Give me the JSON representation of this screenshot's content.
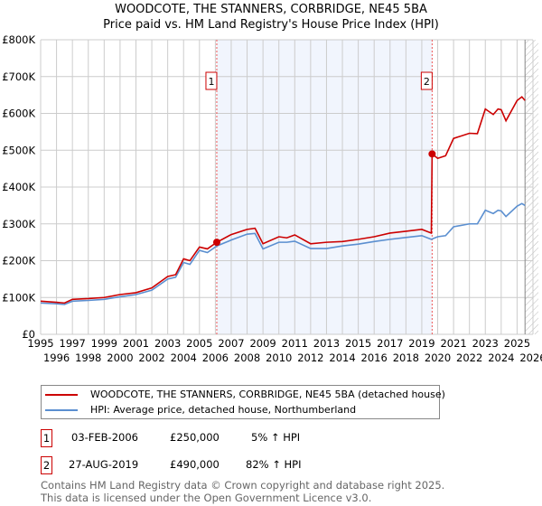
{
  "chart_data": {
    "type": "line",
    "title": "WOODCOTE, THE STANNERS, CORBRIDGE, NE45 5BA",
    "subtitle": "Price paid vs. HM Land Registry's House Price Index (HPI)",
    "xlim": [
      1995,
      2026
    ],
    "ylim": [
      0,
      800000
    ],
    "x_ticks": [
      "1995",
      "1996",
      "1997",
      "1998",
      "1999",
      "2000",
      "2001",
      "2002",
      "2003",
      "2004",
      "2005",
      "2006",
      "2007",
      "2008",
      "2009",
      "2010",
      "2011",
      "2012",
      "2013",
      "2014",
      "2015",
      "2016",
      "2017",
      "2018",
      "2019",
      "2020",
      "2021",
      "2022",
      "2023",
      "2024",
      "2025",
      "2026"
    ],
    "y_ticks": [
      {
        "v": 0,
        "label": "£0"
      },
      {
        "v": 100000,
        "label": "£100K"
      },
      {
        "v": 200000,
        "label": "£200K"
      },
      {
        "v": 300000,
        "label": "£300K"
      },
      {
        "v": 400000,
        "label": "£400K"
      },
      {
        "v": 500000,
        "label": "£500K"
      },
      {
        "v": 600000,
        "label": "£600K"
      },
      {
        "v": 700000,
        "label": "£700K"
      },
      {
        "v": 800000,
        "label": "£800K"
      }
    ],
    "grid": true,
    "series": [
      {
        "name": "WOODCOTE, THE STANNERS, CORBRIDGE, NE45 5BA (detached house)",
        "color": "#cc0000",
        "x": [
          1995,
          1996,
          1996.5,
          1997,
          1998,
          1999,
          2000,
          2001,
          2002,
          2003,
          2003.5,
          2004,
          2004.4,
          2005,
          2005.5,
          2006.09,
          2007,
          2008,
          2008.5,
          2009,
          2010,
          2010.5,
          2011,
          2012,
          2013,
          2014,
          2015,
          2016,
          2017,
          2018,
          2019,
          2019.6,
          2019.65,
          2020,
          2020.5,
          2021,
          2022,
          2022.5,
          2023,
          2023.5,
          2023.8,
          2024,
          2024.3,
          2025,
          2025.3,
          2025.5
        ],
        "y": [
          90000,
          87000,
          85000,
          95000,
          97000,
          100000,
          108000,
          113000,
          126000,
          157000,
          162000,
          205000,
          200000,
          237000,
          232000,
          250000,
          271000,
          285000,
          288000,
          246000,
          265000,
          262000,
          270000,
          246000,
          250000,
          252000,
          258000,
          265000,
          275000,
          280000,
          285000,
          275000,
          490000,
          478000,
          485000,
          532000,
          546000,
          545000,
          612000,
          597000,
          612000,
          610000,
          580000,
          635000,
          645000,
          635000
        ]
      },
      {
        "name": "HPI: Average price, detached house, Northumberland",
        "color": "#5b8fd0",
        "x": [
          1995,
          1996,
          1996.5,
          1997,
          1998,
          1999,
          2000,
          2001,
          2002,
          2003,
          2003.5,
          2004,
          2004.4,
          2005,
          2005.5,
          2006.09,
          2007,
          2008,
          2008.5,
          2009,
          2010,
          2010.5,
          2011,
          2012,
          2013,
          2014,
          2015,
          2016,
          2017,
          2018,
          2019,
          2019.6,
          2020,
          2020.5,
          2021,
          2022,
          2022.5,
          2023,
          2023.5,
          2023.8,
          2024,
          2024.3,
          2025,
          2025.3,
          2025.5
        ],
        "y": [
          85000,
          83000,
          81000,
          90000,
          92000,
          95000,
          102000,
          108000,
          120000,
          150000,
          155000,
          195000,
          190000,
          228000,
          222000,
          240000,
          256000,
          272000,
          274000,
          232000,
          250000,
          250000,
          253000,
          233000,
          233000,
          240000,
          245000,
          252000,
          258000,
          263000,
          268000,
          258000,
          265000,
          268000,
          292000,
          300000,
          300000,
          337000,
          328000,
          337000,
          335000,
          320000,
          348000,
          355000,
          350000
        ]
      }
    ],
    "shaded_range": [
      2006.09,
      2019.65
    ],
    "hatched_from": 2025.5,
    "annotations": [
      {
        "label": "1",
        "x": 2006.09,
        "y": 250000
      },
      {
        "label": "2",
        "x": 2019.65,
        "y": 490000
      }
    ],
    "legend_placement": "below"
  },
  "transactions": [
    {
      "num": "1",
      "date": "03-FEB-2006",
      "price": "£250,000",
      "hpi": "5% ↑ HPI"
    },
    {
      "num": "2",
      "date": "27-AUG-2019",
      "price": "£490,000",
      "hpi": "82% ↑ HPI"
    }
  ],
  "footer": {
    "line1": "Contains HM Land Registry data © Crown copyright and database right 2025.",
    "line2": "This data is licensed under the Open Government Licence v3.0."
  }
}
